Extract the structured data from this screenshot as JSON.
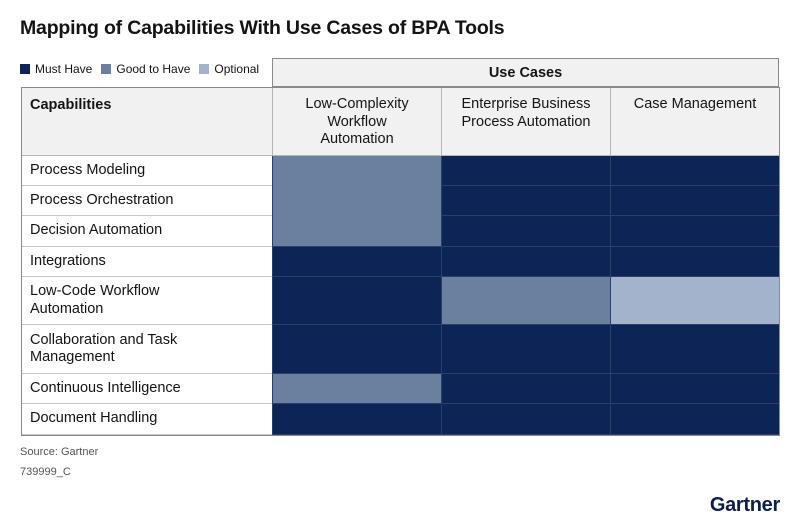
{
  "title": "Mapping of Capabilities With Use Cases of BPA Tools",
  "legend": [
    {
      "label": "Must Have",
      "color": "#0c2456"
    },
    {
      "label": "Good to Have",
      "color": "#6b7f9f"
    },
    {
      "label": "Optional",
      "color": "#a3b3cc"
    }
  ],
  "use_cases_label": "Use Cases",
  "capabilities_label": "Capabilities",
  "source": "Source: Gartner",
  "code": "739999_C",
  "logo": "Gartner",
  "chart_data": {
    "type": "heatmap",
    "title": "Mapping of Capabilities With Use Cases of BPA Tools",
    "x_group_label": "Use Cases",
    "y_label": "Capabilities",
    "columns": [
      "Low-Complexity\nWorkflow\nAutomation",
      "Enterprise Business\nProcess Automation",
      "Case Management"
    ],
    "rows": [
      {
        "label": "Process Modeling",
        "values": [
          "Good to Have",
          "Must Have",
          "Must Have"
        ]
      },
      {
        "label": "Process Orchestration",
        "values": [
          "Good to Have",
          "Must Have",
          "Must Have"
        ]
      },
      {
        "label": "Decision Automation",
        "values": [
          "Good to Have",
          "Must Have",
          "Must Have"
        ]
      },
      {
        "label": "Integrations",
        "values": [
          "Must Have",
          "Must Have",
          "Must Have"
        ]
      },
      {
        "label": "Low-Code Workflow\nAutomation",
        "values": [
          "Must Have",
          "Good to Have",
          "Optional"
        ]
      },
      {
        "label": "Collaboration and Task\nManagement",
        "values": [
          "Must Have",
          "Must Have",
          "Must Have"
        ]
      },
      {
        "label": "Continuous Intelligence",
        "values": [
          "Good to Have",
          "Must Have",
          "Must Have"
        ]
      },
      {
        "label": "Document Handling",
        "values": [
          "Must Have",
          "Must Have",
          "Must Have"
        ]
      }
    ],
    "categories": [
      "Must Have",
      "Good to Have",
      "Optional"
    ]
  }
}
